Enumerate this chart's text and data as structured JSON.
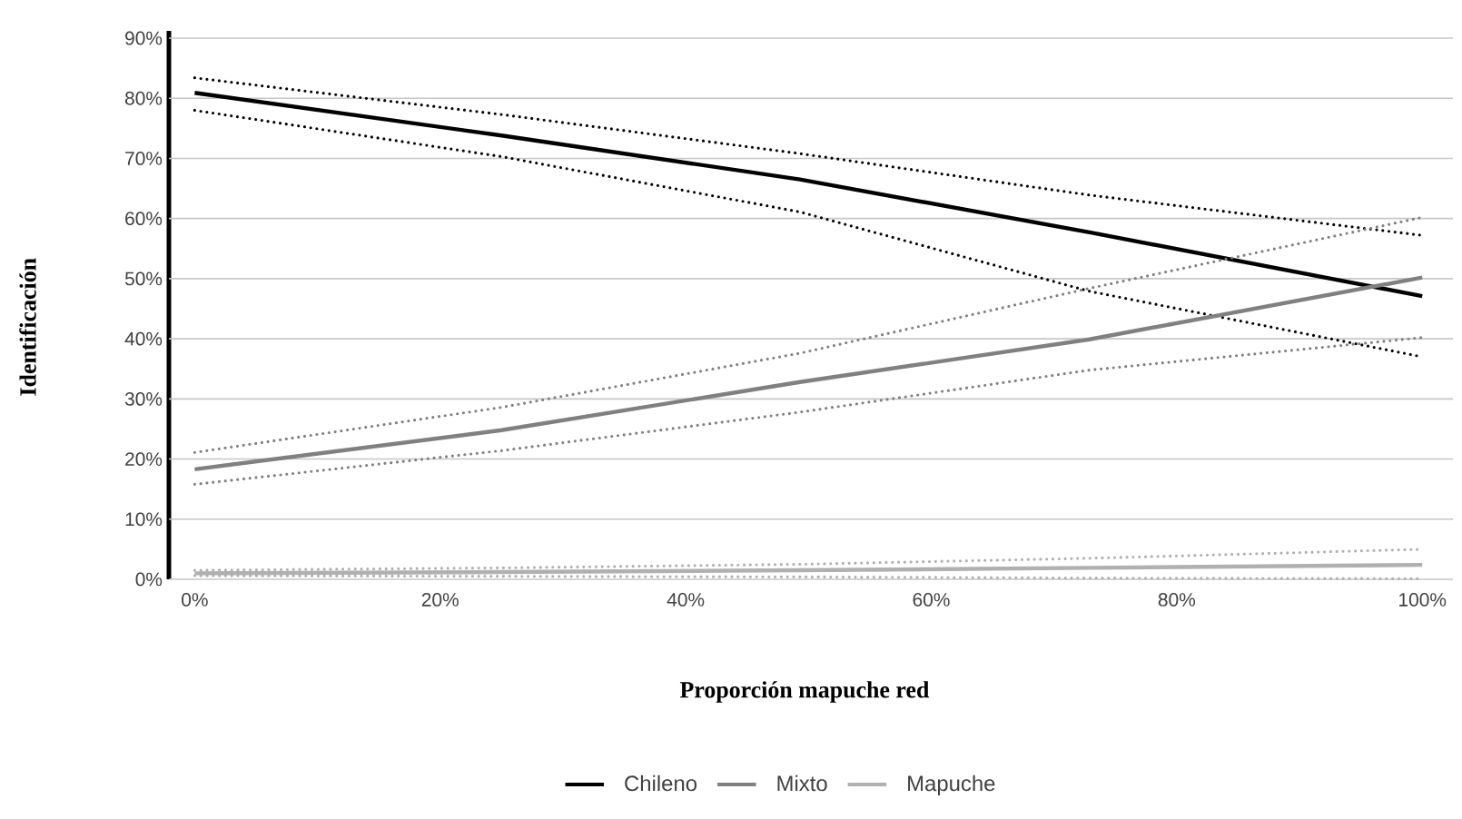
{
  "chart_data": {
    "type": "line",
    "xlabel": "Proporción mapuche red",
    "ylabel": "Identificación",
    "x": [
      0,
      25,
      49.3,
      72.9,
      100
    ],
    "series": [
      {
        "color": "#000000",
        "line_style": "dotted",
        "values": [
          83.4,
          77.3,
          70.8,
          63.9,
          57.2
        ]
      },
      {
        "color": "#000000",
        "line_style": "dotted",
        "values": [
          78.0,
          70.3,
          61.1,
          47.9,
          37.0
        ]
      },
      {
        "name": "Chileno",
        "color": "#000000",
        "values": [
          80.9,
          73.8,
          66.5,
          57.7,
          47.1
        ]
      },
      {
        "color": "#808080",
        "line_style": "dotted",
        "values": [
          21.1,
          28.6,
          37.6,
          48.4,
          60.2
        ]
      },
      {
        "color": "#808080",
        "line_style": "dotted",
        "values": [
          15.8,
          21.4,
          27.8,
          34.8,
          40.2
        ]
      },
      {
        "name": "Mixto",
        "color": "#808080",
        "values": [
          18.3,
          24.8,
          32.8,
          39.9,
          50.2
        ]
      },
      {
        "color": "#b0b0b0",
        "line_style": "dotted",
        "values": [
          1.5,
          1.9,
          2.5,
          3.5,
          5.0
        ]
      },
      {
        "color": "#b0b0b0",
        "line_style": "dotted",
        "values": [
          0.6,
          0.5,
          0.4,
          0.2,
          0.1
        ]
      },
      {
        "name": "Mapuche",
        "color": "#b0b0b0",
        "values": [
          1.0,
          1.2,
          1.5,
          1.9,
          2.4
        ]
      }
    ],
    "xlim": [
      -2.1,
      102.5
    ],
    "ylim": [
      0,
      90
    ],
    "xticks": [
      {
        "value": 0,
        "label": "0%"
      },
      {
        "value": 20,
        "label": "20%"
      },
      {
        "value": 40,
        "label": "40%"
      },
      {
        "value": 60,
        "label": "60%"
      },
      {
        "value": 80,
        "label": "80%"
      },
      {
        "value": 100,
        "label": "100%"
      }
    ],
    "yticks": [
      {
        "value": 0,
        "label": "0%"
      },
      {
        "value": 10,
        "label": "10%"
      },
      {
        "value": 20,
        "label": "20%"
      },
      {
        "value": 30,
        "label": "30%"
      },
      {
        "value": 40,
        "label": "40%"
      },
      {
        "value": 50,
        "label": "50%"
      },
      {
        "value": 60,
        "label": "60%"
      },
      {
        "value": 70,
        "label": "70%"
      },
      {
        "value": 80,
        "label": "80%"
      },
      {
        "value": 90,
        "label": "90%"
      }
    ],
    "grid": "y",
    "legend": "bottom",
    "marker": "none",
    "line_style": "solid"
  }
}
